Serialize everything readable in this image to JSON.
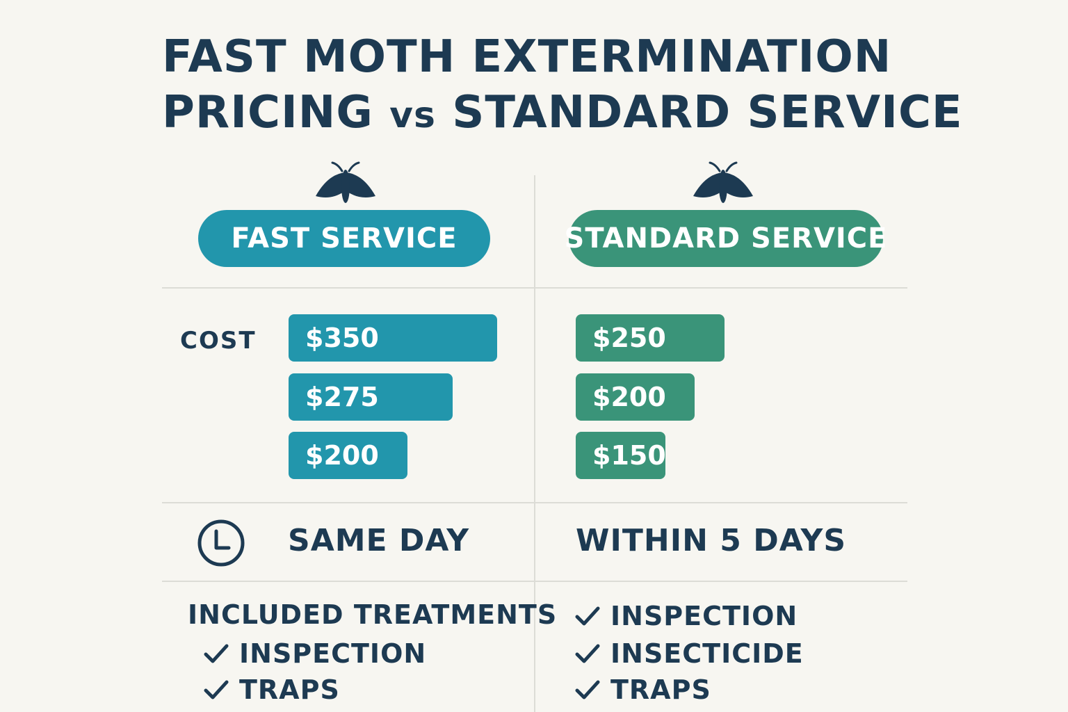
{
  "title": {
    "line1": "FAST MOTH EXTERMINATION",
    "line2_a": "PRICING ",
    "line2_vs": "vs",
    "line2_b": " STANDARD SERVICE"
  },
  "colors": {
    "fast": "#2296ac",
    "standard": "#3a9479",
    "text": "#1d3a52",
    "background": "#f7f6f1"
  },
  "icons": {
    "header": "moth-icon",
    "timing": "clock-icon",
    "treatment": "checkmark-icon"
  },
  "fast": {
    "label": "FAST SERVICE",
    "timing": "SAME DAY",
    "treatments": [
      "INSPECTION",
      "TRAPS"
    ]
  },
  "standard": {
    "label": "STANDARD SERVICE",
    "timing": "WITHIN 5 DAYS",
    "treatments": [
      "INSPECTION",
      "INSECTICIDE",
      "TRAPS"
    ]
  },
  "rows": {
    "cost_label": "COST",
    "treatments_label": "INCLUDED TREATMENTS"
  },
  "chart_data": {
    "type": "bar",
    "orientation": "horizontal",
    "ylabel": "COST",
    "series": [
      {
        "name": "FAST SERVICE",
        "values": [
          350,
          275,
          200
        ],
        "labels": [
          "$350",
          "$275",
          "$200"
        ]
      },
      {
        "name": "STANDARD SERVICE",
        "values": [
          250,
          200,
          150
        ],
        "labels": [
          "$250",
          "$200",
          "$150"
        ]
      }
    ],
    "xlim": [
      0,
      350
    ],
    "grid": false,
    "legend": "none"
  }
}
